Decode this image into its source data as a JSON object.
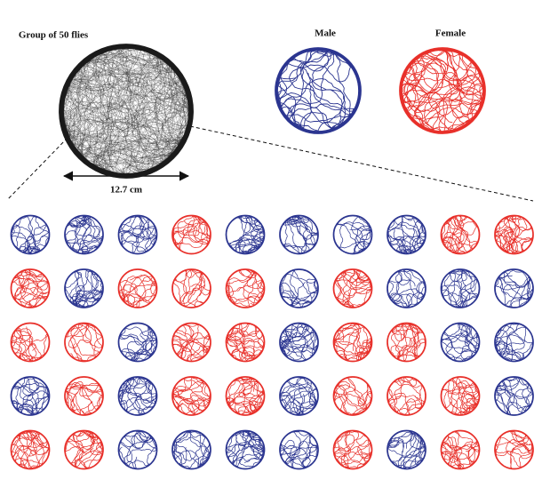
{
  "header": {
    "group_label": "Group of 50 flies",
    "male_label": "Male",
    "female_label": "Female",
    "scale_label": "12.7 cm"
  },
  "colors": {
    "male": "#2b3590",
    "female": "#e8302a",
    "group": "#1a1a1a"
  }
}
